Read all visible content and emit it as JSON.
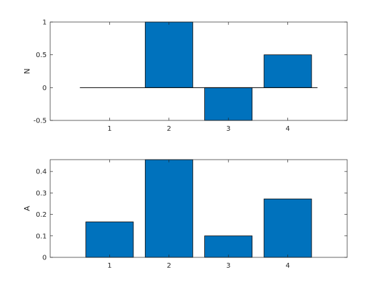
{
  "chart_data": [
    {
      "type": "bar",
      "categories": [
        "1",
        "2",
        "3",
        "4"
      ],
      "values": [
        0,
        1,
        -0.5,
        0.5
      ],
      "ylabel": "N",
      "xlabel": "",
      "title": "",
      "xlim": [
        0,
        5
      ],
      "ylim": [
        -0.5,
        1
      ],
      "yticks": [
        -0.5,
        0,
        0.5,
        1
      ],
      "ytick_labels": [
        "-0.5",
        "0",
        "0.5",
        "1"
      ],
      "grid": false,
      "bar_color": "#0072BD",
      "zero_line": true
    },
    {
      "type": "bar",
      "categories": [
        "1",
        "2",
        "3",
        "4"
      ],
      "values": [
        0.165,
        0.455,
        0.1,
        0.272
      ],
      "ylabel": "A",
      "xlabel": "",
      "title": "",
      "xlim": [
        0,
        5
      ],
      "ylim": [
        0,
        0.455
      ],
      "yticks": [
        0,
        0.1,
        0.2,
        0.3,
        0.4
      ],
      "ytick_labels": [
        "0",
        "0.1",
        "0.2",
        "0.3",
        "0.4"
      ],
      "grid": false,
      "bar_color": "#0072BD",
      "zero_line": false
    }
  ]
}
